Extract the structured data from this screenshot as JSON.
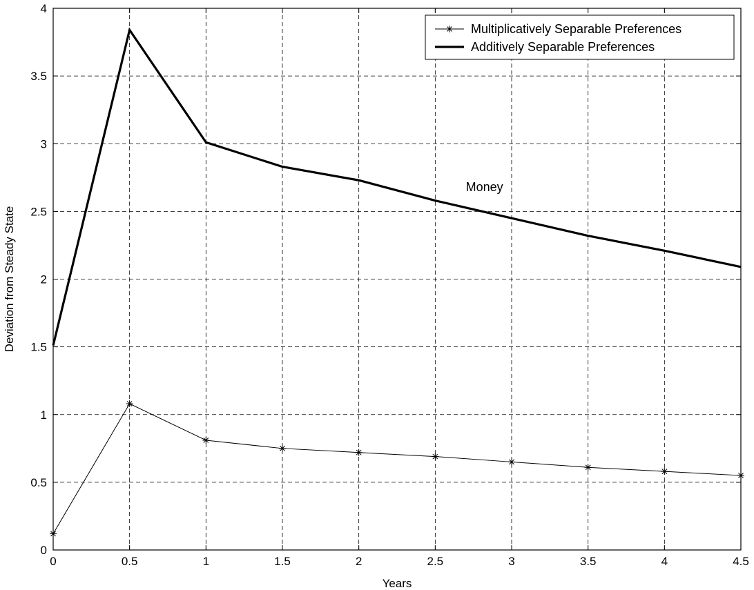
{
  "chart_data": {
    "type": "line",
    "title": "",
    "xlabel": "Years",
    "ylabel": "Deviation from Steady State",
    "xlim": [
      0,
      4.5
    ],
    "ylim": [
      0,
      4
    ],
    "x_ticks": [
      0,
      0.5,
      1,
      1.5,
      2,
      2.5,
      3,
      3.5,
      4,
      4.5
    ],
    "y_ticks": [
      0,
      0.5,
      1,
      1.5,
      2,
      2.5,
      3,
      3.5,
      4
    ],
    "x_tick_labels": [
      "0",
      "0.5",
      "1",
      "1.5",
      "2",
      "2.5",
      "3",
      "3.5",
      "4",
      "4.5"
    ],
    "y_tick_labels": [
      "0",
      "0.5",
      "1",
      "1.5",
      "2",
      "2.5",
      "3",
      "3.5",
      "4"
    ],
    "grid": true,
    "grid_style": "dashed",
    "legend_position": "top-right",
    "x": [
      0,
      0.5,
      1,
      1.5,
      2,
      2.5,
      3,
      3.5,
      4,
      4.5
    ],
    "series": [
      {
        "name": "Multiplicatively Separable Preferences",
        "values": [
          0.12,
          1.08,
          0.81,
          0.75,
          0.72,
          0.69,
          0.65,
          0.61,
          0.58,
          0.55
        ],
        "color": "#000000",
        "line_style": "thin",
        "marker": "asterisk"
      },
      {
        "name": "Additively Separable Preferences",
        "values": [
          1.51,
          3.84,
          3.01,
          2.83,
          2.73,
          2.58,
          2.45,
          2.32,
          2.21,
          2.09
        ],
        "color": "#000000",
        "line_style": "thick",
        "marker": "none"
      }
    ],
    "annotations": [
      {
        "text": "Money",
        "x": 2.7,
        "y": 2.68
      }
    ]
  }
}
